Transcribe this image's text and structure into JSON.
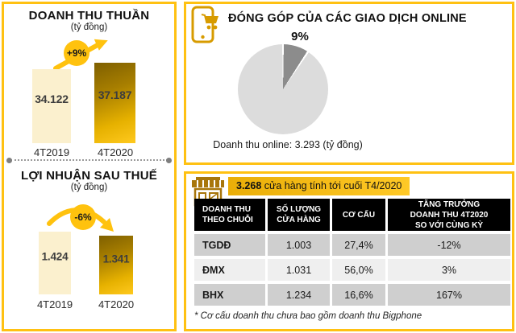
{
  "net_revenue": {
    "title": "DOANH THU THUẦN",
    "unit": "(tỷ đồng)",
    "change_label": "+9%",
    "bars": [
      {
        "label": "4T2019",
        "value": "34.122"
      },
      {
        "label": "4T2020",
        "value": "37.187"
      }
    ]
  },
  "profit": {
    "title": "LỢI NHUẬN SAU THUẾ",
    "unit": "(tỷ đồng)",
    "change_label": "-6%",
    "bars": [
      {
        "label": "4T2019",
        "value": "1.424"
      },
      {
        "label": "4T2020",
        "value": "1.341"
      }
    ]
  },
  "online": {
    "title": "ĐÓNG GÓP CỦA CÁC GIAO DỊCH ONLINE",
    "pie_label": "9%",
    "caption": "Doanh thu online: 3.293 (tỷ đồng)",
    "icon": "phone-shopping-cart-icon"
  },
  "stores": {
    "icon": "storefront-icon",
    "banner_value": "3.268",
    "banner_text": " cửa hàng tính tới cuối T4/2020",
    "table": {
      "headers": [
        "DOANH THU\nTHEO CHUỖI",
        "SỐ LƯỢNG\nCỬA HÀNG",
        "CƠ CẤU",
        "TĂNG TRƯỞNG\nDOANH THU 4T2020\nSO VỚI CÙNG KỲ"
      ],
      "rows": [
        [
          "TGDĐ",
          "1.003",
          "27,4%",
          "-12%"
        ],
        [
          "ĐMX",
          "1.031",
          "56,0%",
          "3%"
        ],
        [
          "BHX",
          "1.234",
          "16,6%",
          "167%"
        ]
      ]
    },
    "footnote": "* Cơ cấu doanh thu chưa bao gồm doanh thu Bigphone"
  },
  "colors": {
    "accent_gold": "#FFC112",
    "badge_yellow": "#FFC20E",
    "bar_cream": "#FBF0CE",
    "bar_gradient_dark": "#7E5F00",
    "bar_gradient_bright": "#FFC91E",
    "pie_slice": "#8C8C8C",
    "pie_rest": "#DCDCDC",
    "table_header_bg": "#000000",
    "row_gray": "#CFCFCF",
    "row_light": "#EFEFEF",
    "banner_gold": "#F0B411",
    "icon_gold": "#C98F06"
  },
  "chart_data": [
    {
      "type": "bar",
      "title": "DOANH THU THUẦN",
      "ylabel": "tỷ đồng",
      "categories": [
        "4T2019",
        "4T2020"
      ],
      "values": [
        34122,
        37187
      ],
      "annotation": "+9%"
    },
    {
      "type": "bar",
      "title": "LỢI NHUẬN SAU THUẾ",
      "ylabel": "tỷ đồng",
      "categories": [
        "4T2019",
        "4T2020"
      ],
      "values": [
        1424,
        1341
      ],
      "annotation": "-6%"
    },
    {
      "type": "pie",
      "title": "ĐÓNG GÓP CỦA CÁC GIAO DỊCH ONLINE",
      "slices": [
        {
          "label": "online",
          "value": 9
        },
        {
          "label": "other",
          "value": 91
        }
      ],
      "annotation": "9%",
      "caption": "Doanh thu online: 3.293 (tỷ đồng)",
      "legend_position": "none"
    },
    {
      "type": "table",
      "title": "3.268 cửa hàng tính tới cuối T4/2020",
      "headers": [
        "DOANH THU THEO CHUỖI",
        "SỐ LƯỢNG CỬA HÀNG",
        "CƠ CẤU",
        "TĂNG TRƯỞNG DOANH THU 4T2020 SO VỚI CÙNG KỲ"
      ],
      "rows": [
        [
          "TGDĐ",
          "1.003",
          "27,4%",
          "-12%"
        ],
        [
          "ĐMX",
          "1.031",
          "56,0%",
          "3%"
        ],
        [
          "BHX",
          "1.234",
          "16,6%",
          "167%"
        ]
      ],
      "footnote": "* Cơ cấu doanh thu chưa bao gồm doanh thu Bigphone"
    }
  ]
}
